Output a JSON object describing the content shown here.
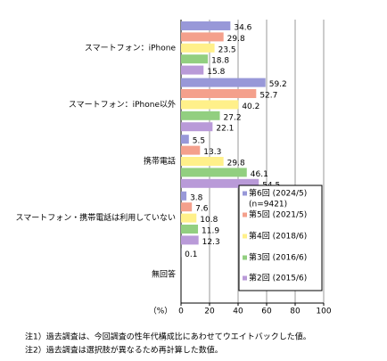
{
  "chart_data": {
    "type": "hbar",
    "categories": [
      "スマートフォン：iPhone",
      "スマートフォン：iPhone以外",
      "携帯電話",
      "スマートフォン・携帯電話は利用していない",
      "無回答"
    ],
    "series": [
      {
        "name": "第6回 (2024/5)",
        "color": "#9898d8",
        "values": [
          34.6,
          59.2,
          5.5,
          3.8,
          0.1
        ]
      },
      {
        "name": "第5回 (2021/5)",
        "color": "#f4a08c",
        "values": [
          29.8,
          52.7,
          13.3,
          7.6,
          null
        ]
      },
      {
        "name": "第4回 (2018/6)",
        "color": "#fff08a",
        "values": [
          23.5,
          40.2,
          29.8,
          10.8,
          null
        ]
      },
      {
        "name": "第3回 (2016/6)",
        "color": "#92cf80",
        "values": [
          18.8,
          27.2,
          46.1,
          11.9,
          null
        ]
      },
      {
        "name": "第2回 (2015/6)",
        "color": "#b99ad8",
        "values": [
          15.8,
          22.1,
          54.5,
          12.3,
          null
        ]
      }
    ],
    "legend_note": "(n=9421)",
    "xlabel": "（%）",
    "xlim": [
      0,
      100
    ],
    "xticks": [
      0,
      20,
      40,
      60,
      80,
      100
    ],
    "grid": true,
    "notes": [
      "注1）過去調査は、今回調査の性年代構成比にあわせてウエイトバックした値。",
      "注2）過去調査は選択肢が異なるため再計算した数値。"
    ]
  }
}
